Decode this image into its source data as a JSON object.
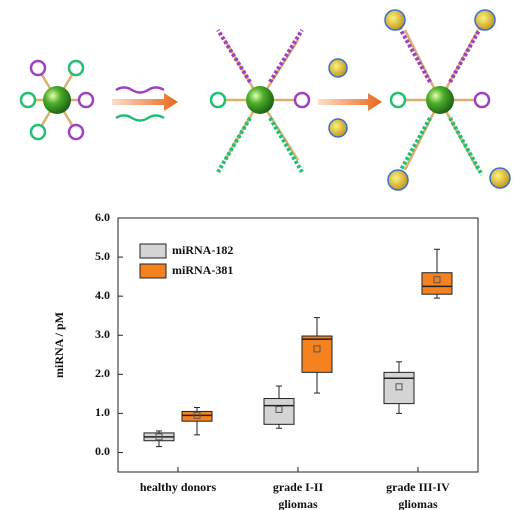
{
  "chart_data": {
    "type": "box",
    "ylabel": "miRNA / pM",
    "categories": [
      [
        "healthy donors"
      ],
      [
        "grade I-II",
        "gliomas"
      ],
      [
        "grade III-IV",
        "gliomas"
      ]
    ],
    "ylim": [
      -0.5,
      6.0
    ],
    "yticks": [
      {
        "value": 0,
        "label": "0.0"
      },
      {
        "value": 1,
        "label": "1.0"
      },
      {
        "value": 2,
        "label": "2.0"
      },
      {
        "value": 3,
        "label": "3.0"
      },
      {
        "value": 4,
        "label": "4.0"
      },
      {
        "value": 5,
        "label": "5.0"
      },
      {
        "value": 6,
        "label": "6.0"
      }
    ],
    "series": [
      {
        "name": "miRNA-182",
        "color": "#d4d4d4",
        "min": [
          0.15,
          0.62,
          1.0
        ],
        "q1": [
          0.3,
          0.72,
          1.25
        ],
        "median": [
          0.4,
          1.2,
          1.9
        ],
        "q3": [
          0.5,
          1.38,
          2.05
        ],
        "max": [
          0.55,
          1.7,
          2.32
        ],
        "mean": [
          0.4,
          1.1,
          1.68
        ]
      },
      {
        "name": "miRNA-381",
        "color": "#f5821f",
        "min": [
          0.45,
          1.52,
          3.95
        ],
        "q1": [
          0.8,
          2.05,
          4.05
        ],
        "median": [
          0.95,
          2.9,
          4.25
        ],
        "q3": [
          1.05,
          2.98,
          4.6
        ],
        "max": [
          1.15,
          3.45,
          5.2
        ],
        "mean": [
          0.95,
          2.65,
          4.42
        ]
      }
    ]
  }
}
